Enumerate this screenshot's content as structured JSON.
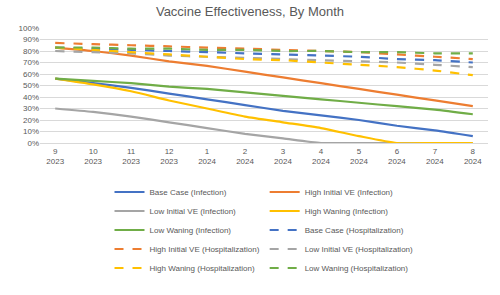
{
  "chart_data": {
    "type": "line",
    "title": "Vaccine Effectiveness, By Month",
    "categories": [
      "9\n2023",
      "10\n2023",
      "11\n2023",
      "12\n2023",
      "1\n2024",
      "2\n2024",
      "3\n2024",
      "4\n2024",
      "5\n2024",
      "6\n2024",
      "7\n2024",
      "8\n2024"
    ],
    "ylim": [
      0,
      100
    ],
    "yticks": [
      {
        "value": 0,
        "label": "0%"
      },
      {
        "value": 10,
        "label": "10%"
      },
      {
        "value": 20,
        "label": "20%"
      },
      {
        "value": 30,
        "label": "30%"
      },
      {
        "value": 40,
        "label": "40%"
      },
      {
        "value": 50,
        "label": "50%"
      },
      {
        "value": 60,
        "label": "60%"
      },
      {
        "value": 70,
        "label": "70%"
      },
      {
        "value": 80,
        "label": "80%"
      },
      {
        "value": 90,
        "label": "90%"
      },
      {
        "value": 100,
        "label": "100%"
      }
    ],
    "grid": true,
    "legend": "bottom",
    "series": [
      {
        "name": "Base Case (Infection)",
        "color": "#4472c4",
        "line_style": "solid",
        "values": [
          56,
          52,
          48,
          43,
          38,
          33,
          28,
          24,
          20,
          15,
          11,
          6
        ]
      },
      {
        "name": "High Initial VE (Infection)",
        "color": "#ed7d31",
        "line_style": "solid",
        "values": [
          83,
          80,
          76,
          71,
          67,
          62,
          57,
          52,
          47,
          42,
          37,
          32
        ]
      },
      {
        "name": "Low Initial VE (Infection)",
        "color": "#a5a5a5",
        "line_style": "solid",
        "values": [
          30,
          27,
          23,
          18,
          13,
          8,
          4,
          0,
          0,
          0,
          0,
          0
        ]
      },
      {
        "name": "High Waning (Infection)",
        "color": "#ffc000",
        "line_style": "solid",
        "values": [
          56,
          51,
          45,
          37,
          30,
          23,
          18,
          13,
          6,
          0,
          0,
          0
        ]
      },
      {
        "name": "Low Waning (Infection)",
        "color": "#70ad47",
        "line_style": "solid",
        "values": [
          56,
          54,
          52,
          49,
          47,
          44,
          41,
          38,
          35,
          32,
          29,
          25
        ]
      },
      {
        "name": "Base Case (Hospitalization)",
        "color": "#4472c4",
        "line_style": "dash",
        "values": [
          83,
          82,
          81,
          80,
          79,
          78,
          77,
          76,
          75,
          73,
          72,
          70
        ]
      },
      {
        "name": "High Initial VE (Hospitalization)",
        "color": "#ed7d31",
        "line_style": "dash",
        "values": [
          87,
          86,
          85,
          84,
          83,
          82,
          81,
          80,
          79,
          77,
          75,
          73
        ]
      },
      {
        "name": "Low Initial VE (Hospitalization)",
        "color": "#a5a5a5",
        "line_style": "dash",
        "values": [
          80,
          79,
          78,
          76,
          75,
          74,
          73,
          72,
          71,
          70,
          68,
          66
        ]
      },
      {
        "name": "High Waning (Hospitalization)",
        "color": "#ffc000",
        "line_style": "dash",
        "values": [
          83,
          81,
          79,
          77,
          75,
          73,
          72,
          70,
          68,
          66,
          63,
          59
        ]
      },
      {
        "name": "Low Waning (Hospitalization)",
        "color": "#70ad47",
        "line_style": "dash",
        "values": [
          83,
          83,
          82,
          82,
          81,
          81,
          80,
          80,
          79,
          79,
          78,
          78
        ]
      }
    ]
  }
}
